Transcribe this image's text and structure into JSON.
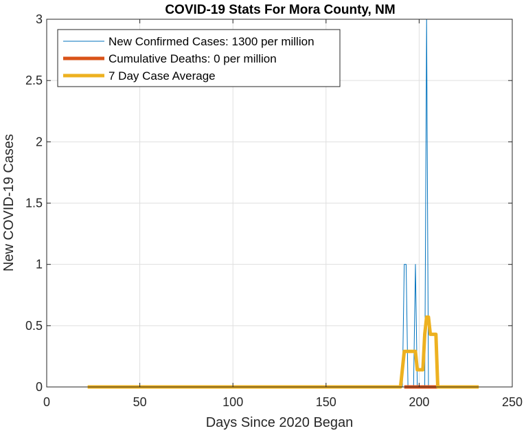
{
  "chart_data": {
    "type": "line",
    "title": "COVID-19 Stats For Mora County, NM",
    "xlabel": "Days Since 2020 Began",
    "ylabel": "New COVID-19 Cases",
    "xlim": [
      0,
      250
    ],
    "ylim": [
      0,
      3
    ],
    "xticks": [
      0,
      50,
      100,
      150,
      200,
      250
    ],
    "yticks": [
      0,
      0.5,
      1,
      1.5,
      2,
      2.5,
      3
    ],
    "xtick_labels": [
      "0",
      "50",
      "100",
      "150",
      "200",
      "250"
    ],
    "ytick_labels": [
      "0",
      "0.5",
      "1",
      "1.5",
      "2",
      "2.5",
      "3"
    ],
    "grid": true,
    "legend_position": "top-left",
    "series": [
      {
        "name": "New Confirmed Cases: 1300 per million",
        "color": "#0072BD",
        "points": [
          [
            22,
            0
          ],
          [
            191,
            0
          ],
          [
            192,
            1
          ],
          [
            193,
            1
          ],
          [
            194,
            0
          ],
          [
            197,
            0
          ],
          [
            198,
            1
          ],
          [
            199,
            0
          ],
          [
            203,
            0
          ],
          [
            204,
            3
          ],
          [
            205,
            0
          ],
          [
            232,
            0
          ]
        ]
      },
      {
        "name": "Cumulative Deaths: 0 per million",
        "color": "#D95319",
        "points": [
          [
            192,
            0
          ],
          [
            210,
            0
          ]
        ]
      },
      {
        "name": "7 Day Case Average",
        "color": "#EDB120",
        "points": [
          [
            22,
            0
          ],
          [
            190,
            0
          ],
          [
            192,
            0.29
          ],
          [
            198,
            0.29
          ],
          [
            199,
            0.14
          ],
          [
            202,
            0.14
          ],
          [
            203,
            0.43
          ],
          [
            204,
            0.57
          ],
          [
            205,
            0.57
          ],
          [
            206,
            0.43
          ],
          [
            209,
            0.43
          ],
          [
            210,
            0
          ],
          [
            232,
            0
          ]
        ]
      }
    ]
  }
}
